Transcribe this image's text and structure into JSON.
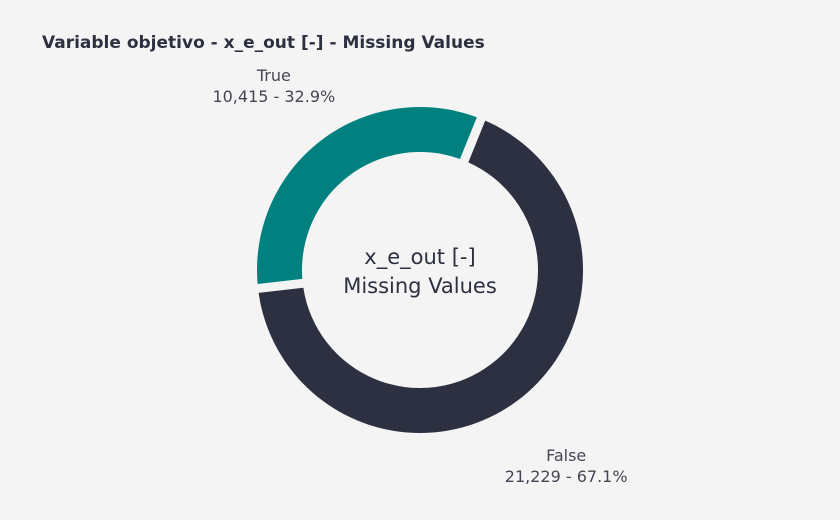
{
  "chart_data": {
    "type": "pie",
    "title": "Variable objetivo - x_e_out [-] - Missing Values",
    "center_label": [
      "x_e_out [-]",
      "Missing Values"
    ],
    "slices": [
      {
        "label": "True",
        "value": 10415,
        "percent": 32.9,
        "value_text": "10,415 - 32.9%",
        "color": "#00807f"
      },
      {
        "label": "False",
        "value": 21229,
        "percent": 67.1,
        "value_text": "21,229 - 67.1%",
        "color": "#2d3040"
      }
    ],
    "hole": true,
    "legend": "none"
  }
}
